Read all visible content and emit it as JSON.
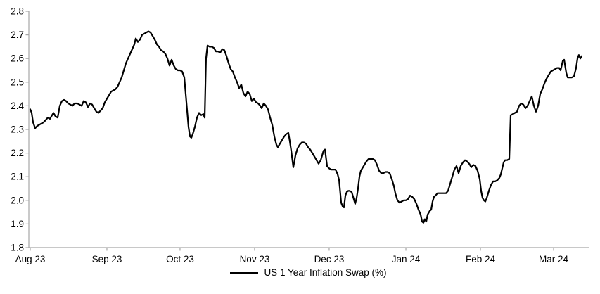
{
  "chart_data": {
    "type": "line",
    "title": "",
    "legend": {
      "label": "US 1 Year Inflation Swap (%)",
      "position": "bottom-center"
    },
    "colors": {
      "line": "#000000",
      "axis": "#a6a6a6",
      "text": "#000000",
      "background": "#ffffff"
    },
    "grid": false,
    "x_axis": {
      "unit": "months since Aug 2023",
      "range": [
        0,
        7.62
      ],
      "ticks": [
        {
          "t": 0.0,
          "label": "Aug 23"
        },
        {
          "t": 1.028,
          "label": "Sep 23"
        },
        {
          "t": 2.009,
          "label": "Oct 23"
        },
        {
          "t": 3.009,
          "label": "Nov 23"
        },
        {
          "t": 4.009,
          "label": "Dec 23"
        },
        {
          "t": 5.038,
          "label": "Jan 24"
        },
        {
          "t": 6.038,
          "label": "Feb 24"
        },
        {
          "t": 7.019,
          "label": "Mar 24"
        }
      ]
    },
    "y_axis": {
      "min": 1.8,
      "max": 2.8,
      "step": 0.1,
      "ticks": [
        {
          "v": 2.8,
          "label": "2.8"
        },
        {
          "v": 2.7,
          "label": "2.7"
        },
        {
          "v": 2.6,
          "label": "2.6"
        },
        {
          "v": 2.5,
          "label": "2.5"
        },
        {
          "v": 2.4,
          "label": "2.4"
        },
        {
          "v": 2.3,
          "label": "2.3"
        },
        {
          "v": 2.2,
          "label": "2.2"
        },
        {
          "v": 2.1,
          "label": "2.1"
        },
        {
          "v": 2.0,
          "label": "2.0"
        },
        {
          "v": 1.9,
          "label": "1.9"
        },
        {
          "v": 1.8,
          "label": "1.8"
        }
      ]
    },
    "series": [
      {
        "name": "US 1 Year Inflation Swap (%)",
        "color": "#000000",
        "points": [
          [
            0,
            2.385
          ],
          [
            0.019,
            2.37
          ],
          [
            0.038,
            2.33
          ],
          [
            0.066,
            2.305
          ],
          [
            0.094,
            2.315
          ],
          [
            0.123,
            2.32
          ],
          [
            0.151,
            2.325
          ],
          [
            0.179,
            2.33
          ],
          [
            0.208,
            2.34
          ],
          [
            0.236,
            2.35
          ],
          [
            0.264,
            2.345
          ],
          [
            0.292,
            2.36
          ],
          [
            0.311,
            2.37
          ],
          [
            0.34,
            2.355
          ],
          [
            0.368,
            2.35
          ],
          [
            0.396,
            2.4
          ],
          [
            0.425,
            2.42
          ],
          [
            0.453,
            2.425
          ],
          [
            0.481,
            2.42
          ],
          [
            0.509,
            2.41
          ],
          [
            0.538,
            2.405
          ],
          [
            0.566,
            2.4
          ],
          [
            0.594,
            2.41
          ],
          [
            0.632,
            2.41
          ],
          [
            0.66,
            2.405
          ],
          [
            0.689,
            2.4
          ],
          [
            0.717,
            2.42
          ],
          [
            0.745,
            2.415
          ],
          [
            0.774,
            2.395
          ],
          [
            0.802,
            2.41
          ],
          [
            0.83,
            2.405
          ],
          [
            0.858,
            2.39
          ],
          [
            0.887,
            2.375
          ],
          [
            0.915,
            2.37
          ],
          [
            0.943,
            2.38
          ],
          [
            0.972,
            2.39
          ],
          [
            1.0,
            2.415
          ],
          [
            1.028,
            2.43
          ],
          [
            1.057,
            2.445
          ],
          [
            1.085,
            2.46
          ],
          [
            1.113,
            2.465
          ],
          [
            1.142,
            2.47
          ],
          [
            1.17,
            2.48
          ],
          [
            1.198,
            2.5
          ],
          [
            1.226,
            2.52
          ],
          [
            1.255,
            2.55
          ],
          [
            1.283,
            2.58
          ],
          [
            1.311,
            2.6
          ],
          [
            1.34,
            2.62
          ],
          [
            1.368,
            2.64
          ],
          [
            1.396,
            2.66
          ],
          [
            1.415,
            2.685
          ],
          [
            1.443,
            2.67
          ],
          [
            1.472,
            2.68
          ],
          [
            1.5,
            2.7
          ],
          [
            1.528,
            2.705
          ],
          [
            1.557,
            2.71
          ],
          [
            1.585,
            2.715
          ],
          [
            1.613,
            2.71
          ],
          [
            1.642,
            2.695
          ],
          [
            1.67,
            2.68
          ],
          [
            1.698,
            2.66
          ],
          [
            1.726,
            2.65
          ],
          [
            1.755,
            2.635
          ],
          [
            1.783,
            2.63
          ],
          [
            1.811,
            2.62
          ],
          [
            1.84,
            2.6
          ],
          [
            1.868,
            2.57
          ],
          [
            1.896,
            2.595
          ],
          [
            1.925,
            2.57
          ],
          [
            1.953,
            2.555
          ],
          [
            1.981,
            2.55
          ],
          [
            2.009,
            2.55
          ],
          [
            2.038,
            2.545
          ],
          [
            2.066,
            2.52
          ],
          [
            2.085,
            2.45
          ],
          [
            2.104,
            2.38
          ],
          [
            2.123,
            2.31
          ],
          [
            2.142,
            2.27
          ],
          [
            2.16,
            2.265
          ],
          [
            2.179,
            2.28
          ],
          [
            2.208,
            2.31
          ],
          [
            2.236,
            2.35
          ],
          [
            2.264,
            2.37
          ],
          [
            2.292,
            2.36
          ],
          [
            2.321,
            2.365
          ],
          [
            2.34,
            2.35
          ],
          [
            2.358,
            2.6
          ],
          [
            2.377,
            2.655
          ],
          [
            2.406,
            2.65
          ],
          [
            2.434,
            2.65
          ],
          [
            2.462,
            2.645
          ],
          [
            2.491,
            2.63
          ],
          [
            2.519,
            2.63
          ],
          [
            2.547,
            2.625
          ],
          [
            2.575,
            2.64
          ],
          [
            2.604,
            2.635
          ],
          [
            2.632,
            2.61
          ],
          [
            2.66,
            2.58
          ],
          [
            2.689,
            2.555
          ],
          [
            2.717,
            2.545
          ],
          [
            2.745,
            2.52
          ],
          [
            2.774,
            2.5
          ],
          [
            2.802,
            2.475
          ],
          [
            2.83,
            2.49
          ],
          [
            2.858,
            2.455
          ],
          [
            2.887,
            2.44
          ],
          [
            2.915,
            2.46
          ],
          [
            2.943,
            2.45
          ],
          [
            2.972,
            2.42
          ],
          [
            3.0,
            2.43
          ],
          [
            3.028,
            2.415
          ],
          [
            3.057,
            2.41
          ],
          [
            3.085,
            2.4
          ],
          [
            3.104,
            2.39
          ],
          [
            3.132,
            2.41
          ],
          [
            3.16,
            2.4
          ],
          [
            3.189,
            2.385
          ],
          [
            3.217,
            2.35
          ],
          [
            3.245,
            2.32
          ],
          [
            3.274,
            2.27
          ],
          [
            3.302,
            2.235
          ],
          [
            3.321,
            2.225
          ],
          [
            3.349,
            2.24
          ],
          [
            3.377,
            2.255
          ],
          [
            3.406,
            2.27
          ],
          [
            3.434,
            2.28
          ],
          [
            3.462,
            2.285
          ],
          [
            3.481,
            2.25
          ],
          [
            3.5,
            2.21
          ],
          [
            3.528,
            2.14
          ],
          [
            3.557,
            2.19
          ],
          [
            3.585,
            2.22
          ],
          [
            3.613,
            2.235
          ],
          [
            3.642,
            2.245
          ],
          [
            3.67,
            2.245
          ],
          [
            3.698,
            2.24
          ],
          [
            3.726,
            2.225
          ],
          [
            3.755,
            2.215
          ],
          [
            3.783,
            2.2
          ],
          [
            3.811,
            2.185
          ],
          [
            3.84,
            2.17
          ],
          [
            3.868,
            2.155
          ],
          [
            3.896,
            2.17
          ],
          [
            3.915,
            2.19
          ],
          [
            3.934,
            2.21
          ],
          [
            3.953,
            2.215
          ],
          [
            3.981,
            2.145
          ],
          [
            4.009,
            2.135
          ],
          [
            4.038,
            2.13
          ],
          [
            4.066,
            2.13
          ],
          [
            4.094,
            2.13
          ],
          [
            4.123,
            2.11
          ],
          [
            4.142,
            2.085
          ],
          [
            4.17,
            1.99
          ],
          [
            4.189,
            1.975
          ],
          [
            4.208,
            1.97
          ],
          [
            4.226,
            2.02
          ],
          [
            4.245,
            2.035
          ],
          [
            4.264,
            2.04
          ],
          [
            4.283,
            2.04
          ],
          [
            4.311,
            2.035
          ],
          [
            4.33,
            2.015
          ],
          [
            4.358,
            1.985
          ],
          [
            4.377,
            2.01
          ],
          [
            4.396,
            2.05
          ],
          [
            4.415,
            2.1
          ],
          [
            4.434,
            2.125
          ],
          [
            4.453,
            2.135
          ],
          [
            4.481,
            2.15
          ],
          [
            4.509,
            2.165
          ],
          [
            4.538,
            2.175
          ],
          [
            4.566,
            2.175
          ],
          [
            4.594,
            2.175
          ],
          [
            4.623,
            2.17
          ],
          [
            4.651,
            2.15
          ],
          [
            4.679,
            2.125
          ],
          [
            4.708,
            2.115
          ],
          [
            4.736,
            2.115
          ],
          [
            4.764,
            2.12
          ],
          [
            4.792,
            2.12
          ],
          [
            4.821,
            2.115
          ],
          [
            4.849,
            2.09
          ],
          [
            4.877,
            2.06
          ],
          [
            4.896,
            2.03
          ],
          [
            4.925,
            2.0
          ],
          [
            4.953,
            1.99
          ],
          [
            4.981,
            1.995
          ],
          [
            5.009,
            2.0
          ],
          [
            5.038,
            2.0
          ],
          [
            5.066,
            2.005
          ],
          [
            5.094,
            2.02
          ],
          [
            5.123,
            2.015
          ],
          [
            5.151,
            2.005
          ],
          [
            5.179,
            1.985
          ],
          [
            5.208,
            1.96
          ],
          [
            5.236,
            1.94
          ],
          [
            5.255,
            1.91
          ],
          [
            5.274,
            1.905
          ],
          [
            5.292,
            1.92
          ],
          [
            5.311,
            1.91
          ],
          [
            5.33,
            1.94
          ],
          [
            5.358,
            1.955
          ],
          [
            5.377,
            1.96
          ],
          [
            5.396,
            1.995
          ],
          [
            5.415,
            2.015
          ],
          [
            5.434,
            2.02
          ],
          [
            5.462,
            2.03
          ],
          [
            5.491,
            2.03
          ],
          [
            5.519,
            2.03
          ],
          [
            5.547,
            2.03
          ],
          [
            5.575,
            2.03
          ],
          [
            5.604,
            2.04
          ],
          [
            5.632,
            2.07
          ],
          [
            5.66,
            2.1
          ],
          [
            5.689,
            2.13
          ],
          [
            5.717,
            2.145
          ],
          [
            5.745,
            2.115
          ],
          [
            5.774,
            2.145
          ],
          [
            5.802,
            2.16
          ],
          [
            5.83,
            2.17
          ],
          [
            5.858,
            2.165
          ],
          [
            5.887,
            2.155
          ],
          [
            5.915,
            2.14
          ],
          [
            5.943,
            2.15
          ],
          [
            5.972,
            2.145
          ],
          [
            6.0,
            2.125
          ],
          [
            6.028,
            2.09
          ],
          [
            6.047,
            2.04
          ],
          [
            6.066,
            2.01
          ],
          [
            6.085,
            2.0
          ],
          [
            6.104,
            1.995
          ],
          [
            6.123,
            2.01
          ],
          [
            6.151,
            2.04
          ],
          [
            6.179,
            2.065
          ],
          [
            6.208,
            2.08
          ],
          [
            6.236,
            2.08
          ],
          [
            6.264,
            2.085
          ],
          [
            6.292,
            2.095
          ],
          [
            6.311,
            2.11
          ],
          [
            6.33,
            2.135
          ],
          [
            6.349,
            2.16
          ],
          [
            6.368,
            2.17
          ],
          [
            6.396,
            2.17
          ],
          [
            6.425,
            2.175
          ],
          [
            6.443,
            2.36
          ],
          [
            6.472,
            2.365
          ],
          [
            6.5,
            2.37
          ],
          [
            6.528,
            2.375
          ],
          [
            6.557,
            2.4
          ],
          [
            6.585,
            2.41
          ],
          [
            6.613,
            2.405
          ],
          [
            6.642,
            2.39
          ],
          [
            6.67,
            2.4
          ],
          [
            6.698,
            2.42
          ],
          [
            6.726,
            2.44
          ],
          [
            6.755,
            2.4
          ],
          [
            6.783,
            2.375
          ],
          [
            6.811,
            2.4
          ],
          [
            6.84,
            2.45
          ],
          [
            6.868,
            2.47
          ],
          [
            6.896,
            2.495
          ],
          [
            6.925,
            2.515
          ],
          [
            6.953,
            2.53
          ],
          [
            6.981,
            2.545
          ],
          [
            7.009,
            2.55
          ],
          [
            7.038,
            2.555
          ],
          [
            7.066,
            2.56
          ],
          [
            7.094,
            2.56
          ],
          [
            7.113,
            2.55
          ],
          [
            7.142,
            2.59
          ],
          [
            7.16,
            2.595
          ],
          [
            7.189,
            2.54
          ],
          [
            7.208,
            2.52
          ],
          [
            7.236,
            2.52
          ],
          [
            7.264,
            2.52
          ],
          [
            7.292,
            2.525
          ],
          [
            7.321,
            2.56
          ],
          [
            7.34,
            2.6
          ],
          [
            7.358,
            2.615
          ],
          [
            7.377,
            2.6
          ],
          [
            7.396,
            2.61
          ]
        ]
      }
    ]
  }
}
